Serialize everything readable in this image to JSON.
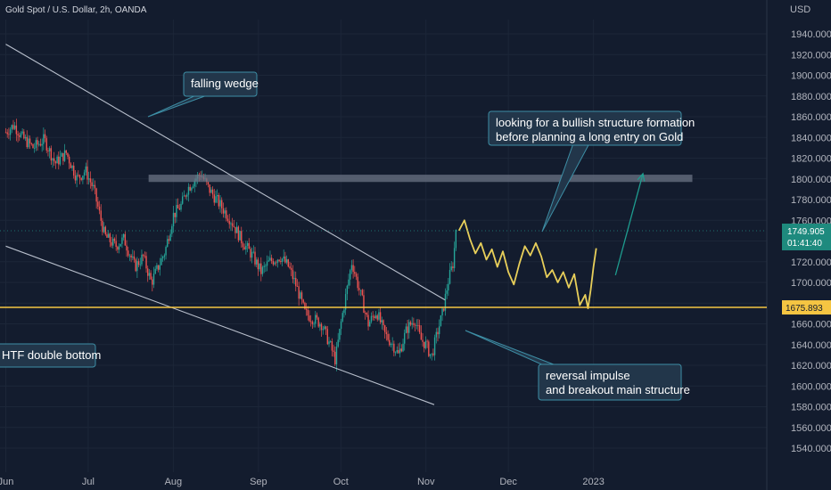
{
  "header": {
    "symbol_title": "Gold Spot / U.S. Dollar, 2h, OANDA",
    "currency": "USD"
  },
  "colors": {
    "background": "#131c2e",
    "candle_up": "#26a69a",
    "candle_down": "#ef5350",
    "projection": "#e8cf5a",
    "support_line": "#f5c542",
    "wedge_line": "#b8bfcc",
    "resistance_zone": "#6b7384",
    "target_arrow": "#1e9c8f",
    "callout_bg": "#22364a",
    "callout_border": "#3d8ea5"
  },
  "chart_data": {
    "type": "candlestick",
    "y_axis": {
      "min": 1530,
      "max": 1950,
      "ticks": [
        1940,
        1920,
        1900,
        1880,
        1860,
        1840,
        1820,
        1800,
        1780,
        1760,
        1740,
        1720,
        1700,
        1680,
        1660,
        1640,
        1620,
        1600,
        1580,
        1560,
        1540
      ],
      "tick_labels": [
        "1940.000",
        "1920.000",
        "1900.000",
        "1880.000",
        "1860.000",
        "1840.000",
        "1820.000",
        "1800.000",
        "1780.000",
        "1760.000",
        "1740.000",
        "1720.000",
        "1700.000",
        "1680.000",
        "1660.000",
        "1640.000",
        "1620.000",
        "1600.000",
        "1580.000",
        "1560.000",
        "1540.000"
      ]
    },
    "x_axis": {
      "ticks": [
        0,
        30,
        61,
        92,
        122,
        153,
        183,
        214
      ],
      "tick_labels": [
        "Jun",
        "Jul",
        "Aug",
        "Sep",
        "Oct",
        "Nov",
        "Dec",
        "2023"
      ]
    },
    "price_path": [
      [
        0,
        1845
      ],
      [
        3,
        1852
      ],
      [
        6,
        1840
      ],
      [
        10,
        1830
      ],
      [
        14,
        1838
      ],
      [
        18,
        1815
      ],
      [
        22,
        1825
      ],
      [
        26,
        1800
      ],
      [
        29,
        1808
      ],
      [
        32,
        1790
      ],
      [
        36,
        1745
      ],
      [
        40,
        1735
      ],
      [
        43,
        1742
      ],
      [
        47,
        1715
      ],
      [
        50,
        1725
      ],
      [
        53,
        1700
      ],
      [
        55,
        1712
      ],
      [
        58,
        1730
      ],
      [
        61,
        1765
      ],
      [
        64,
        1775
      ],
      [
        66,
        1790
      ],
      [
        69,
        1800
      ],
      [
        71,
        1805
      ],
      [
        74,
        1790
      ],
      [
        78,
        1775
      ],
      [
        82,
        1760
      ],
      [
        86,
        1740
      ],
      [
        90,
        1725
      ],
      [
        93,
        1710
      ],
      [
        96,
        1720
      ],
      [
        100,
        1725
      ],
      [
        103,
        1715
      ],
      [
        106,
        1695
      ],
      [
        109,
        1670
      ],
      [
        112,
        1665
      ],
      [
        115,
        1660
      ],
      [
        118,
        1640
      ],
      [
        120,
        1625
      ],
      [
        122,
        1660
      ],
      [
        124,
        1690
      ],
      [
        126,
        1720
      ],
      [
        128,
        1700
      ],
      [
        130,
        1680
      ],
      [
        132,
        1660
      ],
      [
        135,
        1672
      ],
      [
        138,
        1650
      ],
      [
        141,
        1640
      ],
      [
        143,
        1630
      ],
      [
        146,
        1655
      ],
      [
        149,
        1665
      ],
      [
        151,
        1645
      ],
      [
        153,
        1640
      ],
      [
        155,
        1628
      ],
      [
        157,
        1650
      ],
      [
        159,
        1670
      ],
      [
        161,
        1700
      ],
      [
        163,
        1720
      ],
      [
        164,
        1756
      ]
    ],
    "projection_path": [
      [
        165,
        1750
      ],
      [
        167,
        1760
      ],
      [
        169,
        1742
      ],
      [
        171,
        1728
      ],
      [
        173,
        1738
      ],
      [
        175,
        1722
      ],
      [
        177,
        1732
      ],
      [
        179,
        1715
      ],
      [
        181,
        1730
      ],
      [
        183,
        1710
      ],
      [
        185,
        1698
      ],
      [
        187,
        1718
      ],
      [
        189,
        1735
      ],
      [
        191,
        1726
      ],
      [
        193,
        1738
      ],
      [
        195,
        1725
      ],
      [
        197,
        1705
      ],
      [
        199,
        1712
      ],
      [
        201,
        1700
      ],
      [
        203,
        1710
      ],
      [
        205,
        1695
      ],
      [
        207,
        1708
      ],
      [
        209,
        1678
      ],
      [
        211,
        1688
      ],
      [
        212,
        1675
      ],
      [
        213,
        1693
      ],
      [
        214,
        1715
      ],
      [
        215,
        1733
      ]
    ],
    "horizontal_lines": [
      {
        "price": 1675.893,
        "label": "1675.893"
      }
    ],
    "resistance_zone": {
      "x_start": 52,
      "x_end": 250,
      "price_low": 1797,
      "price_high": 1804
    },
    "trendlines": [
      {
        "name": "wedge-upper",
        "from": [
          0,
          1930
        ],
        "to": [
          160,
          1683
        ]
      },
      {
        "name": "wedge-lower",
        "from": [
          0,
          1735
        ],
        "to": [
          156,
          1582
        ]
      }
    ],
    "target_arrow": {
      "from": [
        222,
        1707
      ],
      "to": [
        232,
        1805
      ]
    },
    "current_price": {
      "value": "1749.905",
      "countdown": "01:41:40"
    },
    "annotations": [
      {
        "id": "falling-wedge",
        "lines": [
          "falling wedge"
        ]
      },
      {
        "id": "bullish-structure",
        "lines": [
          "looking for a bullish structure formation",
          "before planning a long entry on Gold"
        ]
      },
      {
        "id": "double-bottom",
        "lines": [
          "HTF double bottom"
        ]
      },
      {
        "id": "reversal-impulse",
        "lines": [
          "reversal impulse",
          "and breakout main structure"
        ]
      }
    ]
  }
}
